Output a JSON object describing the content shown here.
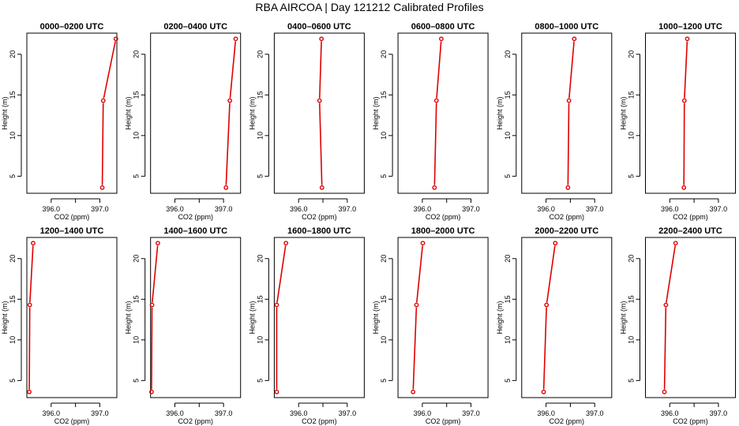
{
  "title": "RBA AIRCOA |  Day 121212  Calibrated Profiles",
  "colors": {
    "line": "#e00000",
    "axis": "#000000"
  },
  "chart_data": [
    {
      "type": "line",
      "title": "0000–0200 UTC",
      "xlabel": "CO2 (ppm)",
      "ylabel": "Height (m)",
      "xlim": [
        395.5,
        397.35
      ],
      "ylim": [
        2.9,
        22.6
      ],
      "xticks": [
        396.0,
        396.5,
        397.0
      ],
      "xticklabels": [
        "396.0",
        "",
        "397.0"
      ],
      "yticks": [
        5,
        10,
        15,
        20
      ],
      "yticklabels": [
        "5",
        "10",
        "15",
        "20"
      ],
      "points": [
        {
          "x": 397.05,
          "y": 3.6
        },
        {
          "x": 397.07,
          "y": 14.3
        },
        {
          "x": 397.33,
          "y": 21.9
        }
      ]
    },
    {
      "type": "line",
      "title": "0200–0400 UTC",
      "xlabel": "CO2 (ppm)",
      "ylabel": "Height (m)",
      "xlim": [
        395.5,
        397.35
      ],
      "ylim": [
        2.9,
        22.6
      ],
      "xticks": [
        396.0,
        396.5,
        397.0
      ],
      "xticklabels": [
        "396.0",
        "",
        "397.0"
      ],
      "yticks": [
        5,
        10,
        15,
        20
      ],
      "yticklabels": [
        "5",
        "10",
        "15",
        "20"
      ],
      "points": [
        {
          "x": 397.05,
          "y": 3.6
        },
        {
          "x": 397.13,
          "y": 14.3
        },
        {
          "x": 397.25,
          "y": 21.9
        }
      ]
    },
    {
      "type": "line",
      "title": "0400–0600 UTC",
      "xlabel": "CO2 (ppm)",
      "ylabel": "Height (m)",
      "xlim": [
        395.5,
        397.35
      ],
      "ylim": [
        2.9,
        22.6
      ],
      "xticks": [
        396.0,
        396.5,
        397.0
      ],
      "xticklabels": [
        "396.0",
        "",
        "397.0"
      ],
      "yticks": [
        5,
        10,
        15,
        20
      ],
      "yticklabels": [
        "5",
        "10",
        "15",
        "20"
      ],
      "points": [
        {
          "x": 396.48,
          "y": 3.6
        },
        {
          "x": 396.43,
          "y": 14.3
        },
        {
          "x": 396.47,
          "y": 21.9
        }
      ]
    },
    {
      "type": "line",
      "title": "0600–0800 UTC",
      "xlabel": "CO2 (ppm)",
      "ylabel": "Height (m)",
      "xlim": [
        395.5,
        397.35
      ],
      "ylim": [
        2.9,
        22.6
      ],
      "xticks": [
        396.0,
        396.5,
        397.0
      ],
      "xticklabels": [
        "396.0",
        "",
        "397.0"
      ],
      "yticks": [
        5,
        10,
        15,
        20
      ],
      "yticklabels": [
        "5",
        "10",
        "15",
        "20"
      ],
      "points": [
        {
          "x": 396.25,
          "y": 3.6
        },
        {
          "x": 396.29,
          "y": 14.3
        },
        {
          "x": 396.39,
          "y": 21.9
        }
      ]
    },
    {
      "type": "line",
      "title": "0800–1000 UTC",
      "xlabel": "CO2 (ppm)",
      "ylabel": "Height (m)",
      "xlim": [
        395.5,
        397.35
      ],
      "ylim": [
        2.9,
        22.6
      ],
      "xticks": [
        396.0,
        396.5,
        397.0
      ],
      "xticklabels": [
        "396.0",
        "",
        "397.0"
      ],
      "yticks": [
        5,
        10,
        15,
        20
      ],
      "yticklabels": [
        "5",
        "10",
        "15",
        "20"
      ],
      "points": [
        {
          "x": 396.45,
          "y": 3.6
        },
        {
          "x": 396.47,
          "y": 14.3
        },
        {
          "x": 396.58,
          "y": 21.9
        }
      ]
    },
    {
      "type": "line",
      "title": "1000–1200 UTC",
      "xlabel": "CO2 (ppm)",
      "ylabel": "Height (m)",
      "xlim": [
        395.5,
        397.35
      ],
      "ylim": [
        2.9,
        22.6
      ],
      "xticks": [
        396.0,
        396.5,
        397.0
      ],
      "xticklabels": [
        "396.0",
        "",
        "397.0"
      ],
      "yticks": [
        5,
        10,
        15,
        20
      ],
      "yticklabels": [
        "5",
        "10",
        "15",
        "20"
      ],
      "points": [
        {
          "x": 396.29,
          "y": 3.6
        },
        {
          "x": 396.3,
          "y": 14.3
        },
        {
          "x": 396.36,
          "y": 21.9
        }
      ]
    },
    {
      "type": "line",
      "title": "1200–1400 UTC",
      "xlabel": "CO2 (ppm)",
      "ylabel": "Height (m)",
      "xlim": [
        395.5,
        397.35
      ],
      "ylim": [
        2.9,
        22.6
      ],
      "xticks": [
        396.0,
        396.5,
        397.0
      ],
      "xticklabels": [
        "396.0",
        "",
        "397.0"
      ],
      "yticks": [
        5,
        10,
        15,
        20
      ],
      "yticklabels": [
        "5",
        "10",
        "15",
        "20"
      ],
      "points": [
        {
          "x": 395.55,
          "y": 3.6
        },
        {
          "x": 395.56,
          "y": 14.3
        },
        {
          "x": 395.63,
          "y": 21.9
        }
      ]
    },
    {
      "type": "line",
      "title": "1400–1600 UTC",
      "xlabel": "CO2 (ppm)",
      "ylabel": "Height (m)",
      "xlim": [
        395.5,
        397.35
      ],
      "ylim": [
        2.9,
        22.6
      ],
      "xticks": [
        396.0,
        396.5,
        397.0
      ],
      "xticklabels": [
        "396.0",
        "",
        "397.0"
      ],
      "yticks": [
        5,
        10,
        15,
        20
      ],
      "yticklabels": [
        "5",
        "10",
        "15",
        "20"
      ],
      "points": [
        {
          "x": 395.52,
          "y": 3.6
        },
        {
          "x": 395.53,
          "y": 14.3
        },
        {
          "x": 395.65,
          "y": 21.9
        }
      ]
    },
    {
      "type": "line",
      "title": "1600–1800 UTC",
      "xlabel": "CO2 (ppm)",
      "ylabel": "Height (m)",
      "xlim": [
        395.5,
        397.35
      ],
      "ylim": [
        2.9,
        22.6
      ],
      "xticks": [
        396.0,
        396.5,
        397.0
      ],
      "xticklabels": [
        "396.0",
        "",
        "397.0"
      ],
      "yticks": [
        5,
        10,
        15,
        20
      ],
      "yticklabels": [
        "5",
        "10",
        "15",
        "20"
      ],
      "points": [
        {
          "x": 395.55,
          "y": 3.6
        },
        {
          "x": 395.55,
          "y": 14.3
        },
        {
          "x": 395.74,
          "y": 21.9
        }
      ]
    },
    {
      "type": "line",
      "title": "1800–2000 UTC",
      "xlabel": "CO2 (ppm)",
      "ylabel": "Height (m)",
      "xlim": [
        395.5,
        397.35
      ],
      "ylim": [
        2.9,
        22.6
      ],
      "xticks": [
        396.0,
        396.5,
        397.0
      ],
      "xticklabels": [
        "396.0",
        "",
        "397.0"
      ],
      "yticks": [
        5,
        10,
        15,
        20
      ],
      "yticklabels": [
        "5",
        "10",
        "15",
        "20"
      ],
      "points": [
        {
          "x": 395.81,
          "y": 3.6
        },
        {
          "x": 395.88,
          "y": 14.3
        },
        {
          "x": 396.01,
          "y": 21.9
        }
      ]
    },
    {
      "type": "line",
      "title": "2000–2200 UTC",
      "xlabel": "CO2 (ppm)",
      "ylabel": "Height (m)",
      "xlim": [
        395.5,
        397.35
      ],
      "ylim": [
        2.9,
        22.6
      ],
      "xticks": [
        396.0,
        396.5,
        397.0
      ],
      "xticklabels": [
        "396.0",
        "",
        "397.0"
      ],
      "yticks": [
        5,
        10,
        15,
        20
      ],
      "yticklabels": [
        "5",
        "10",
        "15",
        "20"
      ],
      "points": [
        {
          "x": 395.95,
          "y": 3.6
        },
        {
          "x": 396.01,
          "y": 14.3
        },
        {
          "x": 396.19,
          "y": 21.9
        }
      ]
    },
    {
      "type": "line",
      "title": "2200–2400 UTC",
      "xlabel": "CO2 (ppm)",
      "ylabel": "Height (m)",
      "xlim": [
        395.5,
        397.35
      ],
      "ylim": [
        2.9,
        22.6
      ],
      "xticks": [
        396.0,
        396.5,
        397.0
      ],
      "xticklabels": [
        "396.0",
        "",
        "397.0"
      ],
      "yticks": [
        5,
        10,
        15,
        20
      ],
      "yticklabels": [
        "5",
        "10",
        "15",
        "20"
      ],
      "points": [
        {
          "x": 395.89,
          "y": 3.6
        },
        {
          "x": 395.92,
          "y": 14.3
        },
        {
          "x": 396.12,
          "y": 21.9
        }
      ]
    }
  ]
}
